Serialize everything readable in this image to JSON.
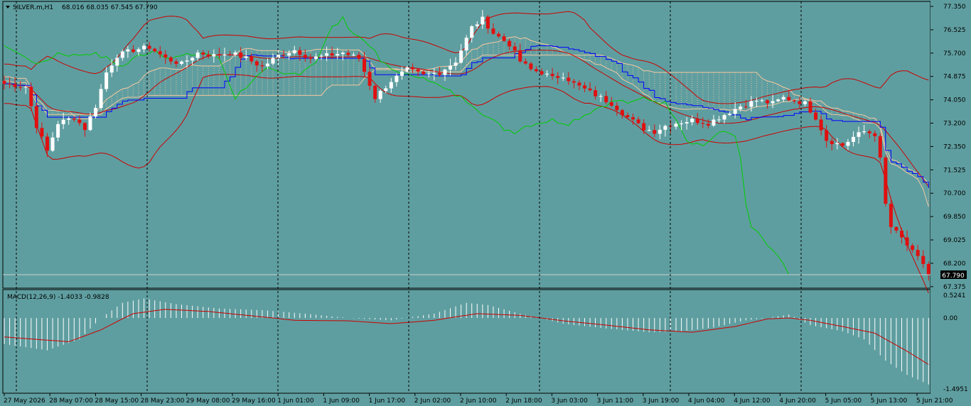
{
  "main_header": {
    "symbol_label": "SILVER.m,H1",
    "ohlc": "68.016 68.035 67.545 67.790"
  },
  "price_axis": {
    "labels": [
      "77.350",
      "76.525",
      "75.700",
      "74.875",
      "74.050",
      "73.200",
      "72.350",
      "71.525",
      "70.700",
      "69.850",
      "69.025",
      "68.200",
      "67.375"
    ],
    "current_price": "67.790"
  },
  "macd": {
    "label": "MACD(12,26,9) -1.4033 -0.9828",
    "axis_labels": [
      "0.5241",
      "0.00",
      "-1.4951"
    ]
  },
  "time_axis": {
    "labels": [
      "27 May 2026",
      "28 May 07:00",
      "28 May 15:00",
      "28 May 23:00",
      "29 May 08:00",
      "29 May 16:00",
      "1 Jun 01:00",
      "1 Jun 09:00",
      "1 Jun 17:00",
      "2 Jun 02:00",
      "2 Jun 10:00",
      "2 Jun 18:00",
      "3 Jun 03:00",
      "3 Jun 11:00",
      "3 Jun 19:00",
      "4 Jun 04:00",
      "4 Jun 12:00",
      "4 Jun 20:00",
      "5 Jun 05:00",
      "5 Jun 13:00",
      "5 Jun 21:00"
    ]
  },
  "colors": {
    "background": "#5f9ea0",
    "bull_candle": "#ffffff",
    "bear_candle": "#e01010",
    "bollinger": "#cc0000",
    "kijun": "#0000ff",
    "chikou": "#00cc00",
    "cloud": "#f4c8a0",
    "macd_hist": "#ffffff",
    "macd_signal": "#cc0000",
    "separator": "#000000"
  },
  "chart_data": {
    "type": "candlestick",
    "symbol": "SILVER.m",
    "timeframe": "H1",
    "y_range": [
      67.375,
      77.35
    ],
    "macd_range": [
      -1.4951,
      0.5241
    ],
    "x_labels": [
      "27 May 2026",
      "28 May 07:00",
      "28 May 15:00",
      "28 May 23:00",
      "29 May 08:00",
      "29 May 16:00",
      "1 Jun 01:00",
      "1 Jun 09:00",
      "1 Jun 17:00",
      "2 Jun 02:00",
      "2 Jun 10:00",
      "2 Jun 18:00",
      "3 Jun 03:00",
      "3 Jun 11:00",
      "3 Jun 19:00",
      "4 Jun 04:00",
      "4 Jun 12:00",
      "4 Jun 20:00",
      "5 Jun 05:00",
      "5 Jun 13:00",
      "5 Jun 21:00"
    ],
    "close_path": [
      [
        0,
        74.6
      ],
      [
        4,
        74.5
      ],
      [
        6,
        73.1
      ],
      [
        8,
        72.2
      ],
      [
        10,
        73.2
      ],
      [
        13,
        73.4
      ],
      [
        15,
        73.0
      ],
      [
        17,
        73.8
      ],
      [
        19,
        75.0
      ],
      [
        21,
        75.6
      ],
      [
        24,
        75.8
      ],
      [
        27,
        75.9
      ],
      [
        30,
        75.5
      ],
      [
        33,
        75.3
      ],
      [
        36,
        75.7
      ],
      [
        39,
        75.6
      ],
      [
        42,
        75.7
      ],
      [
        45,
        75.5
      ],
      [
        48,
        75.2
      ],
      [
        51,
        75.6
      ],
      [
        54,
        75.8
      ],
      [
        57,
        75.5
      ],
      [
        60,
        75.6
      ],
      [
        63,
        75.7
      ],
      [
        66,
        75.5
      ],
      [
        69,
        74.1
      ],
      [
        72,
        74.7
      ],
      [
        75,
        75.1
      ],
      [
        78,
        74.9
      ],
      [
        81,
        75.0
      ],
      [
        84,
        75.4
      ],
      [
        87,
        76.6
      ],
      [
        89,
        76.9
      ],
      [
        91,
        76.4
      ],
      [
        94,
        76.0
      ],
      [
        96,
        75.4
      ],
      [
        98,
        75.1
      ],
      [
        100,
        75.0
      ],
      [
        102,
        74.8
      ],
      [
        104,
        74.9
      ],
      [
        106,
        74.6
      ],
      [
        108,
        74.4
      ],
      [
        110,
        74.2
      ],
      [
        113,
        73.9
      ],
      [
        116,
        73.4
      ],
      [
        119,
        73.0
      ],
      [
        121,
        72.9
      ],
      [
        123,
        73.1
      ],
      [
        125,
        73.2
      ],
      [
        128,
        73.3
      ],
      [
        131,
        73.2
      ],
      [
        133,
        73.4
      ],
      [
        135,
        73.6
      ],
      [
        137,
        73.8
      ],
      [
        140,
        74.0
      ],
      [
        143,
        73.9
      ],
      [
        145,
        74.1
      ],
      [
        147,
        74.0
      ],
      [
        149,
        73.9
      ],
      [
        151,
        73.4
      ],
      [
        153,
        72.6
      ],
      [
        156,
        72.4
      ],
      [
        158,
        72.7
      ],
      [
        160,
        72.9
      ],
      [
        162,
        72.8
      ],
      [
        163,
        71.9
      ],
      [
        164,
        70.3
      ],
      [
        165,
        69.5
      ],
      [
        167,
        69.1
      ],
      [
        169,
        68.6
      ],
      [
        171,
        68.2
      ],
      [
        172,
        67.8
      ]
    ],
    "macd_hist_path": [
      [
        0,
        -0.55
      ],
      [
        8,
        -0.68
      ],
      [
        14,
        -0.45
      ],
      [
        18,
        0.0
      ],
      [
        22,
        0.35
      ],
      [
        26,
        0.45
      ],
      [
        32,
        0.32
      ],
      [
        40,
        0.22
      ],
      [
        48,
        0.18
      ],
      [
        56,
        0.1
      ],
      [
        64,
        0.0
      ],
      [
        72,
        -0.05
      ],
      [
        80,
        0.1
      ],
      [
        86,
        0.35
      ],
      [
        90,
        0.3
      ],
      [
        96,
        0.1
      ],
      [
        104,
        -0.12
      ],
      [
        112,
        -0.22
      ],
      [
        120,
        -0.3
      ],
      [
        126,
        -0.28
      ],
      [
        132,
        -0.2
      ],
      [
        138,
        -0.05
      ],
      [
        142,
        0.0
      ],
      [
        146,
        0.08
      ],
      [
        150,
        -0.15
      ],
      [
        156,
        -0.28
      ],
      [
        160,
        -0.45
      ],
      [
        164,
        -0.9
      ],
      [
        168,
        -1.2
      ],
      [
        172,
        -1.4
      ]
    ],
    "macd_signal_path": [
      [
        0,
        -0.4
      ],
      [
        6,
        -0.45
      ],
      [
        12,
        -0.5
      ],
      [
        18,
        -0.25
      ],
      [
        24,
        0.1
      ],
      [
        30,
        0.2
      ],
      [
        38,
        0.15
      ],
      [
        46,
        0.05
      ],
      [
        54,
        -0.05
      ],
      [
        64,
        -0.06
      ],
      [
        72,
        -0.12
      ],
      [
        80,
        -0.05
      ],
      [
        88,
        0.1
      ],
      [
        96,
        0.06
      ],
      [
        104,
        -0.06
      ],
      [
        112,
        -0.15
      ],
      [
        120,
        -0.25
      ],
      [
        128,
        -0.3
      ],
      [
        136,
        -0.18
      ],
      [
        142,
        -0.02
      ],
      [
        146,
        0.0
      ],
      [
        150,
        -0.05
      ],
      [
        156,
        -0.18
      ],
      [
        162,
        -0.32
      ],
      [
        168,
        -0.7
      ],
      [
        172,
        -0.98
      ]
    ]
  }
}
